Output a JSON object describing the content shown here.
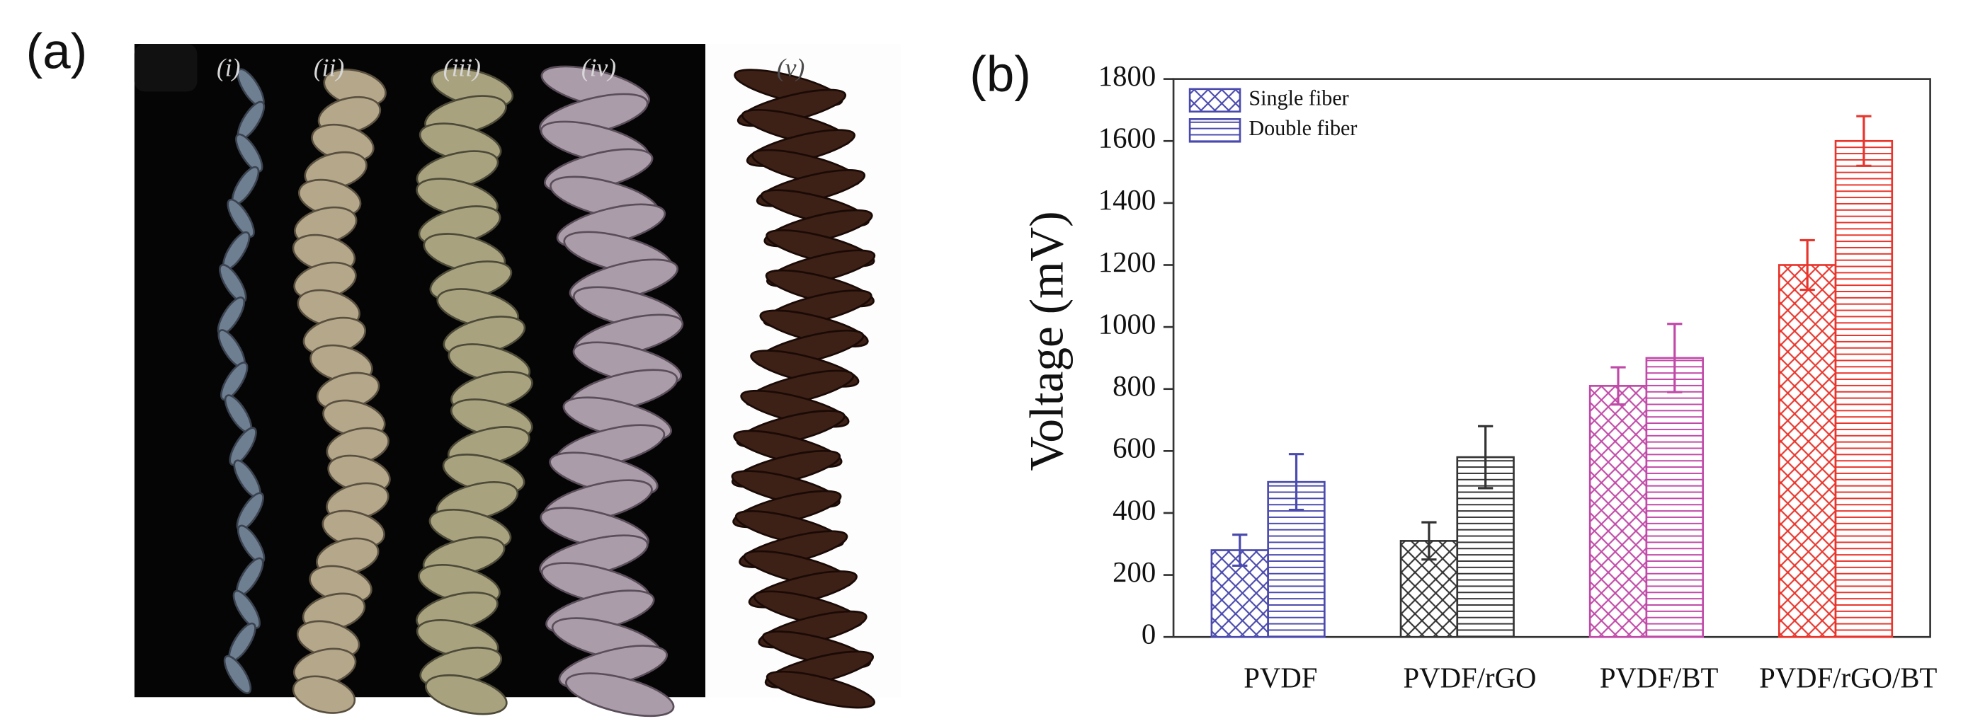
{
  "panel_a": {
    "label": "(a)",
    "fiber_labels": [
      "(i)",
      "(ii)",
      "(iii)",
      "(iv)",
      "(v)"
    ]
  },
  "chart_data": {
    "type": "bar",
    "panel_label": "(b)",
    "y_label": "Voltage (mV)",
    "categories": [
      "PVDF",
      "PVDF/rGO",
      "PVDF/BT",
      "PVDF/rGO/BT"
    ],
    "colors": [
      "#4a4aae",
      "#333333",
      "#c04aa8",
      "#e8352c"
    ],
    "legend_color": "#4a4aae",
    "series": [
      {
        "name": "Single fiber",
        "hatch": "cross",
        "values": [
          280,
          310,
          810,
          1200
        ],
        "errors": [
          50,
          60,
          60,
          80
        ]
      },
      {
        "name": "Double fiber",
        "hatch": "horizontal",
        "values": [
          500,
          580,
          900,
          1600
        ],
        "errors": [
          90,
          100,
          110,
          80
        ]
      }
    ],
    "ylim": [
      0,
      1800
    ],
    "yticks": [
      0,
      200,
      400,
      600,
      800,
      1000,
      1200,
      1400,
      1600,
      1800
    ]
  }
}
